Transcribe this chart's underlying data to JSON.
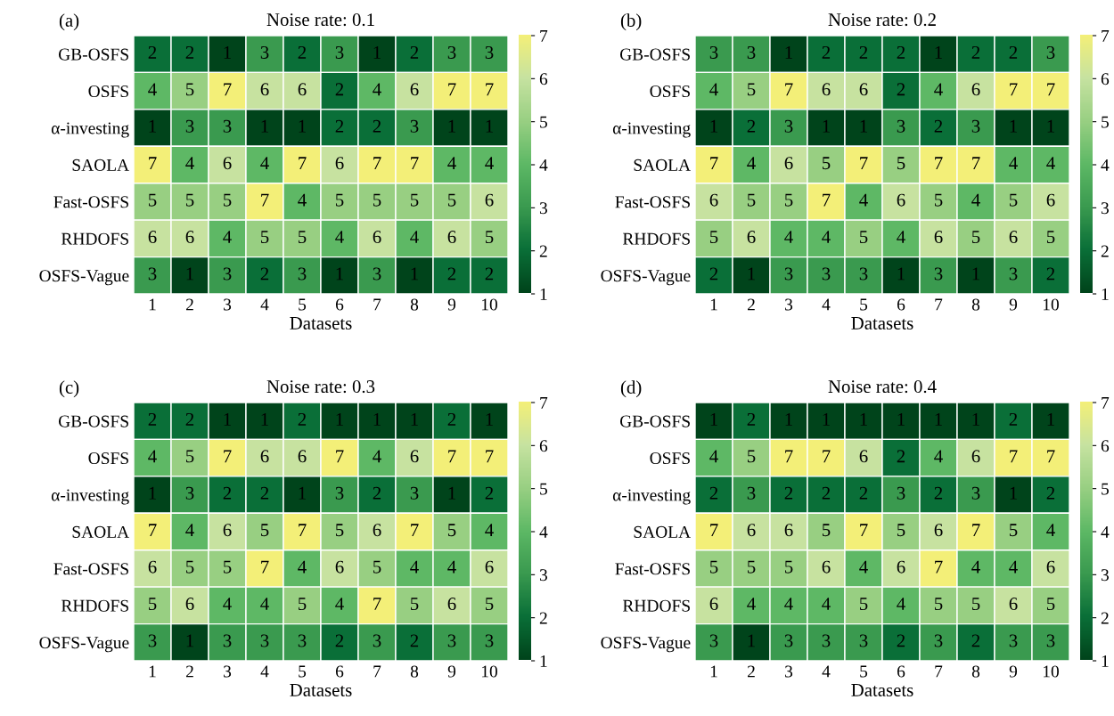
{
  "chart_data": [
    {
      "type": "heatmap",
      "title": "Noise rate: 0.1",
      "xlabel": "Datasets",
      "annotations": [
        "(a)"
      ],
      "categories": [
        "1",
        "2",
        "3",
        "4",
        "5",
        "6",
        "7",
        "8",
        "9",
        "10"
      ],
      "y_categories": [
        "GB-OSFS",
        "OSFS",
        "α-investing",
        "SAOLA",
        "Fast-OSFS",
        "RHDOFS",
        "OSFS-Vague"
      ],
      "clim": [
        1,
        7
      ],
      "cticks": [
        1,
        2,
        3,
        4,
        5,
        6,
        7
      ],
      "data_labels": true,
      "cells": [
        [
          2,
          2,
          1,
          3,
          2,
          3,
          1,
          2,
          3,
          3
        ],
        [
          4,
          5,
          7,
          6,
          6,
          2,
          4,
          6,
          7,
          7
        ],
        [
          1,
          3,
          3,
          1,
          1,
          2,
          2,
          3,
          1,
          1
        ],
        [
          7,
          4,
          6,
          4,
          7,
          6,
          7,
          7,
          4,
          4
        ],
        [
          5,
          5,
          5,
          7,
          4,
          5,
          5,
          5,
          5,
          6
        ],
        [
          6,
          6,
          4,
          5,
          5,
          4,
          6,
          4,
          6,
          5
        ],
        [
          3,
          1,
          3,
          2,
          3,
          1,
          3,
          1,
          2,
          2
        ]
      ]
    },
    {
      "type": "heatmap",
      "title": "Noise rate: 0.2",
      "xlabel": "Datasets",
      "annotations": [
        "(b)"
      ],
      "categories": [
        "1",
        "2",
        "3",
        "4",
        "5",
        "6",
        "7",
        "8",
        "9",
        "10"
      ],
      "y_categories": [
        "GB-OSFS",
        "OSFS",
        "α-investing",
        "SAOLA",
        "Fast-OSFS",
        "RHDOFS",
        "OSFS-Vague"
      ],
      "clim": [
        1,
        7
      ],
      "cticks": [
        1,
        2,
        3,
        4,
        5,
        6,
        7
      ],
      "data_labels": true,
      "cells": [
        [
          3,
          3,
          1,
          2,
          2,
          2,
          1,
          2,
          2,
          3
        ],
        [
          4,
          5,
          7,
          6,
          6,
          2,
          4,
          6,
          7,
          7
        ],
        [
          1,
          2,
          3,
          1,
          1,
          3,
          2,
          3,
          1,
          1
        ],
        [
          7,
          4,
          6,
          5,
          7,
          5,
          7,
          7,
          4,
          4
        ],
        [
          6,
          5,
          5,
          7,
          4,
          6,
          5,
          4,
          5,
          6
        ],
        [
          5,
          6,
          4,
          4,
          5,
          4,
          6,
          5,
          6,
          5
        ],
        [
          2,
          1,
          3,
          3,
          3,
          1,
          3,
          1,
          3,
          2
        ]
      ]
    },
    {
      "type": "heatmap",
      "title": "Noise rate: 0.3",
      "xlabel": "Datasets",
      "annotations": [
        "(c)"
      ],
      "categories": [
        "1",
        "2",
        "3",
        "4",
        "5",
        "6",
        "7",
        "8",
        "9",
        "10"
      ],
      "y_categories": [
        "GB-OSFS",
        "OSFS",
        "α-investing",
        "SAOLA",
        "Fast-OSFS",
        "RHDOFS",
        "OSFS-Vague"
      ],
      "clim": [
        1,
        7
      ],
      "cticks": [
        1,
        2,
        3,
        4,
        5,
        6,
        7
      ],
      "data_labels": true,
      "cells": [
        [
          2,
          2,
          1,
          1,
          2,
          1,
          1,
          1,
          2,
          1
        ],
        [
          4,
          5,
          7,
          6,
          6,
          7,
          4,
          6,
          7,
          7
        ],
        [
          1,
          3,
          2,
          2,
          1,
          3,
          2,
          3,
          1,
          2
        ],
        [
          7,
          4,
          6,
          5,
          7,
          5,
          6,
          7,
          5,
          4
        ],
        [
          6,
          5,
          5,
          7,
          4,
          6,
          5,
          4,
          4,
          6
        ],
        [
          5,
          6,
          4,
          4,
          5,
          4,
          7,
          5,
          6,
          5
        ],
        [
          3,
          1,
          3,
          3,
          3,
          2,
          3,
          2,
          3,
          3
        ]
      ]
    },
    {
      "type": "heatmap",
      "title": "Noise rate: 0.4",
      "xlabel": "Datasets",
      "annotations": [
        "(d)"
      ],
      "categories": [
        "1",
        "2",
        "3",
        "4",
        "5",
        "6",
        "7",
        "8",
        "9",
        "10"
      ],
      "y_categories": [
        "GB-OSFS",
        "OSFS",
        "α-investing",
        "SAOLA",
        "Fast-OSFS",
        "RHDOFS",
        "OSFS-Vague"
      ],
      "clim": [
        1,
        7
      ],
      "cticks": [
        1,
        2,
        3,
        4,
        5,
        6,
        7
      ],
      "data_labels": true,
      "cells": [
        [
          1,
          2,
          1,
          1,
          1,
          1,
          1,
          1,
          2,
          1
        ],
        [
          4,
          5,
          7,
          7,
          6,
          2,
          4,
          6,
          7,
          7
        ],
        [
          2,
          3,
          2,
          2,
          2,
          3,
          2,
          3,
          1,
          2
        ],
        [
          7,
          6,
          6,
          5,
          7,
          5,
          6,
          7,
          5,
          4
        ],
        [
          5,
          5,
          5,
          6,
          4,
          6,
          7,
          4,
          4,
          6
        ],
        [
          6,
          4,
          4,
          4,
          5,
          4,
          5,
          5,
          6,
          5
        ],
        [
          3,
          1,
          3,
          3,
          3,
          2,
          3,
          2,
          3,
          3
        ]
      ]
    }
  ]
}
